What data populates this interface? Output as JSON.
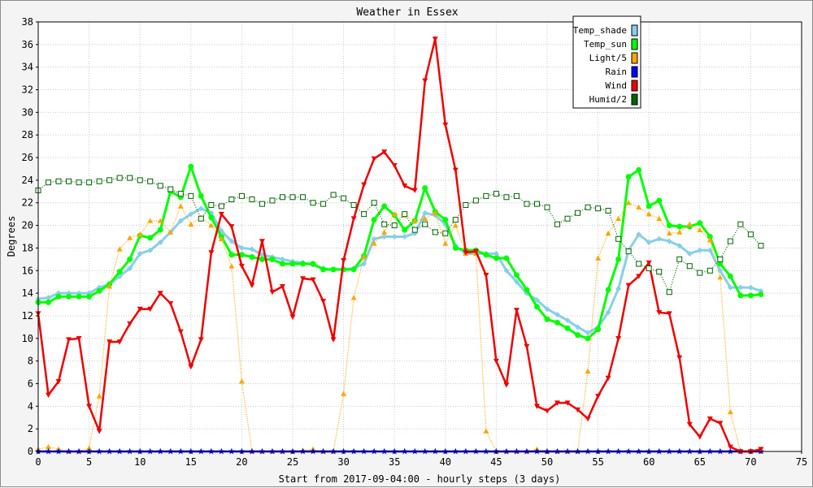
{
  "chart_data": {
    "type": "line",
    "title": "Weather in Essex",
    "xlabel": "Start from 2017-09-04:00 - hourly steps (3 days)",
    "ylabel": "Degrees",
    "xlim": [
      0,
      75
    ],
    "ylim": [
      0,
      38
    ],
    "x_ticks": [
      0,
      5,
      10,
      15,
      20,
      25,
      30,
      35,
      40,
      45,
      50,
      55,
      60,
      65,
      70,
      75
    ],
    "y_ticks": [
      0,
      2,
      4,
      6,
      8,
      10,
      12,
      14,
      16,
      18,
      20,
      22,
      24,
      26,
      28,
      30,
      32,
      34,
      36,
      38
    ],
    "grid": true,
    "legend": "top-right",
    "x": [
      0,
      1,
      2,
      3,
      4,
      5,
      6,
      7,
      8,
      9,
      10,
      11,
      12,
      13,
      14,
      15,
      16,
      17,
      18,
      19,
      20,
      21,
      22,
      23,
      24,
      25,
      26,
      27,
      28,
      29,
      30,
      31,
      32,
      33,
      34,
      35,
      36,
      37,
      38,
      39,
      40,
      41,
      42,
      43,
      44,
      45,
      46,
      47,
      48,
      49,
      50,
      51,
      52,
      53,
      54,
      55,
      56,
      57,
      58,
      59,
      60,
      61,
      62,
      63,
      64,
      65,
      66,
      67,
      68,
      69,
      70,
      71
    ],
    "series": [
      {
        "name": "Temp_shade",
        "color": "#87ceeb",
        "marker": "diamond",
        "values": [
          13.5,
          13.6,
          14.0,
          14.0,
          14.0,
          14.0,
          14.5,
          14.8,
          15.5,
          16.2,
          17.5,
          17.8,
          18.5,
          19.4,
          20.4,
          21.0,
          21.5,
          21.1,
          19.5,
          18.6,
          18.0,
          17.9,
          17.4,
          17.2,
          17.0,
          16.8,
          16.7,
          16.5,
          16.2,
          16.1,
          16.1,
          16.2,
          16.6,
          18.8,
          19.0,
          19.0,
          19.0,
          19.3,
          21.1,
          20.9,
          20.1,
          18.2,
          17.5,
          17.5,
          17.5,
          17.5,
          16.0,
          15.0,
          14.0,
          13.4,
          12.6,
          12.1,
          11.6,
          11.0,
          10.5,
          11.0,
          12.3,
          14.4,
          17.8,
          19.2,
          18.5,
          18.8,
          18.6,
          18.2,
          17.5,
          17.8,
          17.8,
          16.0,
          14.5,
          14.5,
          14.5,
          14.2
        ]
      },
      {
        "name": "Temp_sun",
        "color": "#00ff00",
        "marker": "circle",
        "values": [
          13.2,
          13.2,
          13.7,
          13.7,
          13.7,
          13.7,
          14.2,
          14.8,
          15.9,
          17.0,
          19.1,
          18.9,
          19.6,
          23.0,
          22.5,
          25.2,
          22.6,
          20.7,
          19.0,
          17.4,
          17.4,
          17.2,
          17.0,
          17.0,
          16.6,
          16.6,
          16.6,
          16.6,
          16.1,
          16.1,
          16.1,
          16.1,
          17.3,
          20.5,
          21.7,
          20.9,
          19.6,
          20.4,
          23.3,
          21.2,
          20.5,
          18.0,
          17.8,
          17.8,
          17.4,
          17.1,
          17.1,
          15.6,
          14.3,
          12.8,
          11.7,
          11.4,
          10.9,
          10.3,
          10.0,
          10.8,
          14.3,
          17.0,
          24.3,
          24.9,
          21.7,
          22.2,
          20.0,
          19.9,
          19.9,
          20.2,
          19.0,
          16.6,
          15.5,
          13.8,
          13.8,
          13.9
        ]
      },
      {
        "name": "Light/5",
        "color": "#ffa500",
        "marker": "triangle-up",
        "values": [
          0.2,
          0.4,
          0.2,
          0.0,
          0.0,
          0.3,
          4.9,
          14.6,
          17.9,
          18.9,
          19.2,
          20.4,
          20.4,
          19.4,
          21.7,
          20.1,
          20.7,
          20.0,
          18.8,
          16.4,
          6.2,
          0.0,
          0.0,
          0.0,
          0.0,
          0.0,
          0.1,
          0.2,
          0.0,
          0.0,
          5.1,
          13.6,
          17.2,
          18.4,
          19.4,
          21.0,
          20.9,
          20.4,
          20.6,
          21.1,
          18.4,
          20.0,
          17.5,
          17.5,
          1.8,
          0.0,
          0.0,
          0.0,
          0.0,
          0.2,
          0.0,
          0.0,
          0.0,
          0.0,
          7.1,
          17.1,
          19.3,
          20.6,
          22.0,
          21.6,
          21.0,
          20.6,
          19.3,
          19.4,
          20.1,
          19.6,
          18.7,
          15.4,
          3.5,
          0.0,
          0.0,
          0.0
        ]
      },
      {
        "name": "Rain",
        "color": "#0000ff",
        "marker": "star",
        "values": [
          0,
          0,
          0,
          0,
          0,
          0,
          0,
          0,
          0,
          0,
          0,
          0,
          0,
          0,
          0,
          0,
          0,
          0,
          0,
          0,
          0,
          0,
          0,
          0,
          0,
          0,
          0,
          0,
          0,
          0,
          0,
          0,
          0,
          0,
          0,
          0,
          0,
          0,
          0,
          0,
          0,
          0,
          0,
          0,
          0,
          0,
          0,
          0,
          0,
          0,
          0,
          0,
          0,
          0,
          0,
          0,
          0,
          0,
          0,
          0,
          0,
          0,
          0,
          0,
          0,
          0,
          0,
          0,
          0,
          0,
          0,
          0
        ]
      },
      {
        "name": "Wind",
        "color": "#ee0000",
        "marker": "triangle-down",
        "values": [
          12.2,
          5.0,
          6.2,
          9.9,
          10.0,
          4.0,
          1.8,
          9.7,
          9.7,
          11.3,
          12.6,
          12.6,
          14.0,
          13.1,
          10.6,
          7.5,
          9.9,
          17.6,
          21.0,
          19.9,
          16.4,
          14.7,
          18.6,
          14.1,
          14.6,
          11.9,
          15.3,
          15.2,
          13.3,
          9.9,
          16.9,
          20.6,
          23.6,
          25.9,
          26.5,
          25.3,
          23.5,
          23.1,
          32.8,
          36.5,
          28.9,
          24.9,
          17.6,
          17.7,
          15.6,
          8.0,
          5.9,
          12.5,
          9.3,
          4.0,
          3.6,
          4.3,
          4.3,
          3.7,
          2.9,
          4.9,
          6.5,
          10.0,
          14.7,
          15.5,
          16.7,
          12.3,
          12.2,
          8.3,
          2.4,
          1.3,
          2.9,
          2.5,
          0.4,
          0.0,
          0.0,
          0.2
        ]
      },
      {
        "name": "Humid/2",
        "color": "#006400",
        "marker": "square",
        "values": [
          23.1,
          23.8,
          23.9,
          23.9,
          23.8,
          23.8,
          23.9,
          24.0,
          24.2,
          24.2,
          24.0,
          23.9,
          23.5,
          23.2,
          22.8,
          22.6,
          20.6,
          21.8,
          21.7,
          22.3,
          22.6,
          22.3,
          21.9,
          22.2,
          22.5,
          22.5,
          22.5,
          22.0,
          21.9,
          22.7,
          22.4,
          21.8,
          21.0,
          22.0,
          20.1,
          20.0,
          21.0,
          19.6,
          20.1,
          19.4,
          19.3,
          20.5,
          21.8,
          22.2,
          22.6,
          22.8,
          22.5,
          22.6,
          21.9,
          21.9,
          21.6,
          20.1,
          20.6,
          21.1,
          21.6,
          21.5,
          21.3,
          18.8,
          17.7,
          16.6,
          16.2,
          15.9,
          14.1,
          17.0,
          16.4,
          15.8,
          16.0,
          17.0,
          18.6,
          20.1,
          19.2,
          18.2
        ]
      }
    ]
  }
}
